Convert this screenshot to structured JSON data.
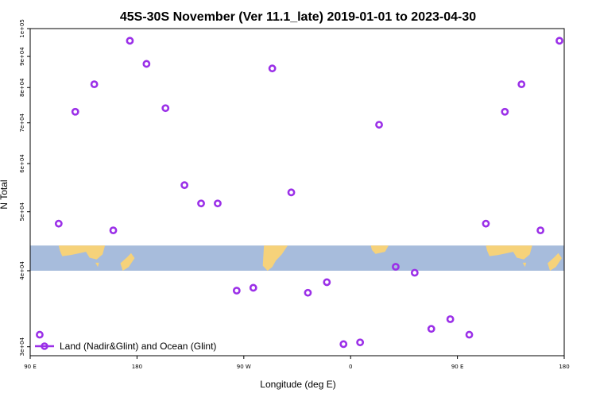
{
  "chart_data": {
    "type": "scatter",
    "title": "45S-30S November (Ver 11.1_late)   2019-01-01 to 2023-04-30",
    "xlabel": "Longitude (deg E)",
    "ylabel": "N Total",
    "xlim": [
      90,
      540
    ],
    "ylim": [
      29000,
      100000
    ],
    "x_ticks": [
      {
        "value": 90,
        "label": "90 E"
      },
      {
        "value": 180,
        "label": "180"
      },
      {
        "value": 270,
        "label": "90 W"
      },
      {
        "value": 360,
        "label": "0"
      },
      {
        "value": 450,
        "label": "90 E"
      },
      {
        "value": 540,
        "label": "180"
      }
    ],
    "y_ticks": [
      {
        "value": 30000,
        "label": "3e+04"
      },
      {
        "value": 40000,
        "label": "4e+04"
      },
      {
        "value": 50000,
        "label": "5e+04"
      },
      {
        "value": 60000,
        "label": "6e+04"
      },
      {
        "value": 70000,
        "label": "7e+04"
      },
      {
        "value": 80000,
        "label": "8e+04"
      },
      {
        "value": 90000,
        "label": "9e+04"
      },
      {
        "value": 100000,
        "label": "1e+05"
      }
    ],
    "y_scale": "log",
    "map_strip": {
      "lat_range": "45S-30S",
      "y_range": [
        40000,
        44000
      ]
    },
    "series": [
      {
        "name": "Land (Nadir&Glint) and Ocean (Glint)",
        "color": "#9b30e8",
        "marker": "open-circle",
        "x": [
          98,
          114,
          128,
          144,
          160,
          174,
          188,
          204,
          220,
          234,
          248,
          264,
          278,
          294,
          310,
          324,
          340,
          354,
          368,
          384,
          398,
          414,
          428,
          444,
          460,
          474,
          490,
          504,
          520,
          536
        ],
        "y": [
          31400,
          47800,
          73000,
          81000,
          46600,
          95500,
          87500,
          74000,
          55300,
          51600,
          51600,
          37100,
          37500,
          86000,
          53800,
          36800,
          38300,
          30300,
          30500,
          69500,
          40600,
          39700,
          32100,
          33300,
          31400,
          47800,
          73000,
          81000,
          46600,
          95500
        ]
      }
    ],
    "legend": {
      "position": "bottom-left"
    },
    "grid": false
  }
}
